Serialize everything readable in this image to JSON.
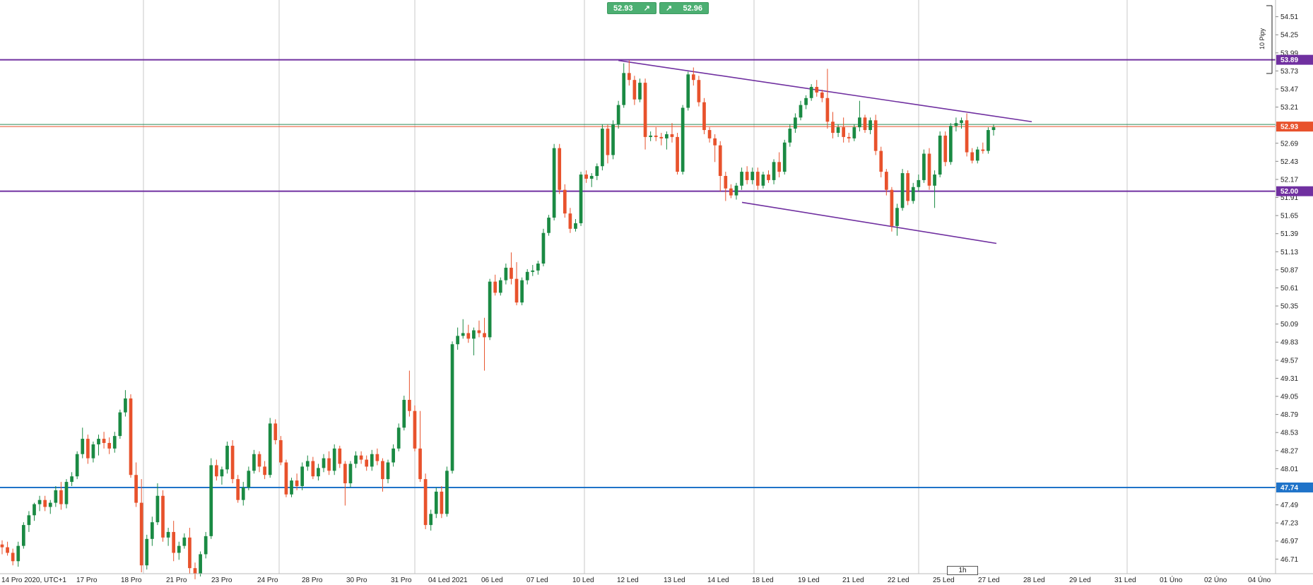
{
  "header": {
    "sell_value": "52.93",
    "buy_value": "52.96",
    "sell_icon": "arrow-up-right-icon",
    "buy_icon": "arrow-up-right-icon"
  },
  "timeframe": "1h",
  "measure_label": "10 Pipy",
  "chart_data": {
    "type": "candlestick",
    "y_ticks": [
      "54.51",
      "54.25",
      "53.99",
      "53.73",
      "53.47",
      "53.21",
      "52.95",
      "52.69",
      "52.43",
      "52.17",
      "51.91",
      "51.65",
      "51.39",
      "51.13",
      "50.87",
      "50.61",
      "50.35",
      "50.09",
      "49.83",
      "49.57",
      "49.31",
      "49.05",
      "48.79",
      "48.53",
      "48.27",
      "48.01",
      "47.75",
      "47.49",
      "47.23",
      "46.97",
      "46.71"
    ],
    "ylim": [
      46.5,
      54.75
    ],
    "x_labels": [
      "14 Pro 2020, UTC+1",
      "17 Pro",
      "18 Pro",
      "21 Pro",
      "23 Pro",
      "24 Pro",
      "28 Pro",
      "30 Pro",
      "31 Pro",
      "04 Led 2021",
      "06 Led",
      "07 Led",
      "10 Led",
      "12 Led",
      "13 Led",
      "14 Led",
      "18 Led",
      "19 Led",
      "21 Led",
      "22 Led",
      "25 Led",
      "27 Led",
      "28 Led",
      "29 Led",
      "31 Led",
      "01 Úno",
      "02 Úno",
      "04 Úno"
    ],
    "horizontal_lines": [
      {
        "value": 53.89,
        "label": "53.89",
        "color": "#7030a0"
      },
      {
        "value": 52.0,
        "label": "52.00",
        "color": "#7030a0"
      },
      {
        "value": 47.74,
        "label": "47.74",
        "color": "#1f73c9"
      },
      {
        "value": 52.96,
        "label": "",
        "color": "#2e8b57"
      },
      {
        "value": 52.93,
        "label": "52.93",
        "color": "#e8522c"
      }
    ],
    "channel": {
      "upper": {
        "start_value": 53.88,
        "end_value": 53.0
      },
      "lower": {
        "start_value": 51.84,
        "end_value": 51.25
      }
    },
    "candles": [
      [
        46.92,
        46.98,
        46.78,
        46.88
      ],
      [
        46.88,
        46.96,
        46.76,
        46.8
      ],
      [
        46.8,
        46.86,
        46.62,
        46.68
      ],
      [
        46.68,
        46.96,
        46.6,
        46.9
      ],
      [
        46.9,
        47.24,
        46.86,
        47.2
      ],
      [
        47.2,
        47.4,
        47.1,
        47.34
      ],
      [
        47.34,
        47.52,
        47.26,
        47.5
      ],
      [
        47.5,
        47.62,
        47.4,
        47.56
      ],
      [
        47.56,
        47.62,
        47.4,
        47.46
      ],
      [
        47.46,
        47.56,
        47.36,
        47.52
      ],
      [
        47.52,
        47.76,
        47.46,
        47.7
      ],
      [
        47.7,
        47.82,
        47.42,
        47.5
      ],
      [
        47.5,
        47.86,
        47.44,
        47.82
      ],
      [
        47.82,
        47.96,
        47.76,
        47.9
      ],
      [
        47.9,
        48.26,
        47.86,
        48.22
      ],
      [
        48.22,
        48.6,
        48.16,
        48.44
      ],
      [
        48.44,
        48.5,
        48.08,
        48.16
      ],
      [
        48.16,
        48.4,
        48.1,
        48.36
      ],
      [
        48.36,
        48.5,
        48.2,
        48.44
      ],
      [
        48.44,
        48.54,
        48.3,
        48.38
      ],
      [
        48.38,
        48.46,
        48.22,
        48.3
      ],
      [
        48.3,
        48.54,
        48.24,
        48.48
      ],
      [
        48.48,
        48.86,
        48.44,
        48.82
      ],
      [
        48.82,
        49.14,
        48.76,
        49.02
      ],
      [
        49.02,
        49.08,
        47.88,
        47.92
      ],
      [
        47.92,
        48.1,
        47.46,
        47.52
      ],
      [
        47.52,
        47.86,
        46.52,
        46.62
      ],
      [
        46.62,
        47.06,
        46.56,
        47.0
      ],
      [
        47.0,
        47.32,
        46.9,
        47.24
      ],
      [
        47.24,
        47.8,
        47.2,
        47.62
      ],
      [
        47.62,
        47.7,
        46.96,
        47.02
      ],
      [
        47.02,
        47.16,
        46.9,
        47.1
      ],
      [
        47.1,
        47.26,
        46.68,
        46.8
      ],
      [
        46.8,
        46.96,
        46.7,
        46.9
      ],
      [
        46.9,
        47.08,
        46.86,
        47.02
      ],
      [
        47.02,
        47.16,
        46.5,
        46.58
      ],
      [
        46.58,
        46.66,
        46.42,
        46.5
      ],
      [
        46.5,
        46.82,
        46.46,
        46.78
      ],
      [
        46.78,
        47.1,
        46.72,
        47.04
      ],
      [
        47.04,
        48.16,
        47.0,
        48.06
      ],
      [
        48.06,
        48.14,
        47.84,
        47.9
      ],
      [
        47.9,
        48.04,
        47.78,
        48.0
      ],
      [
        48.0,
        48.4,
        47.94,
        48.34
      ],
      [
        48.34,
        48.42,
        47.8,
        47.86
      ],
      [
        47.86,
        47.92,
        47.52,
        47.56
      ],
      [
        47.56,
        47.82,
        47.48,
        47.74
      ],
      [
        47.74,
        48.04,
        47.7,
        47.98
      ],
      [
        47.98,
        48.28,
        47.94,
        48.22
      ],
      [
        48.22,
        48.26,
        47.96,
        48.04
      ],
      [
        48.04,
        48.12,
        47.86,
        47.92
      ],
      [
        47.92,
        48.74,
        47.88,
        48.66
      ],
      [
        48.66,
        48.72,
        48.36,
        48.42
      ],
      [
        48.42,
        48.48,
        48.06,
        48.1
      ],
      [
        48.1,
        48.14,
        47.6,
        47.64
      ],
      [
        47.64,
        47.88,
        47.6,
        47.84
      ],
      [
        47.84,
        47.94,
        47.7,
        47.76
      ],
      [
        47.76,
        48.1,
        47.7,
        48.04
      ],
      [
        48.04,
        48.2,
        47.98,
        48.12
      ],
      [
        48.12,
        48.18,
        47.86,
        47.9
      ],
      [
        47.9,
        48.08,
        47.84,
        48.02
      ],
      [
        48.02,
        48.22,
        47.96,
        48.16
      ],
      [
        48.16,
        48.26,
        47.92,
        47.98
      ],
      [
        47.98,
        48.36,
        47.92,
        48.3
      ],
      [
        48.3,
        48.34,
        48.02,
        48.08
      ],
      [
        48.08,
        48.12,
        47.48,
        47.8
      ],
      [
        47.8,
        48.12,
        47.74,
        48.08
      ],
      [
        48.08,
        48.26,
        48.02,
        48.2
      ],
      [
        48.2,
        48.26,
        48.08,
        48.14
      ],
      [
        48.14,
        48.2,
        47.98,
        48.04
      ],
      [
        48.04,
        48.28,
        47.98,
        48.22
      ],
      [
        48.22,
        48.3,
        48.06,
        48.12
      ],
      [
        48.12,
        48.16,
        47.68,
        47.86
      ],
      [
        47.86,
        48.14,
        47.8,
        48.1
      ],
      [
        48.1,
        48.36,
        48.04,
        48.3
      ],
      [
        48.3,
        48.66,
        48.26,
        48.6
      ],
      [
        48.6,
        49.06,
        48.56,
        49.0
      ],
      [
        49.0,
        49.42,
        48.76,
        48.84
      ],
      [
        48.84,
        48.92,
        48.26,
        48.3
      ],
      [
        48.3,
        48.84,
        47.82,
        47.86
      ],
      [
        47.86,
        47.94,
        47.14,
        47.2
      ],
      [
        47.2,
        47.42,
        47.12,
        47.36
      ],
      [
        47.36,
        47.74,
        47.3,
        47.68
      ],
      [
        47.68,
        47.76,
        47.3,
        47.36
      ],
      [
        47.36,
        48.04,
        47.32,
        47.98
      ],
      [
        47.98,
        49.84,
        47.94,
        49.8
      ],
      [
        49.8,
        50.04,
        49.72,
        49.92
      ],
      [
        49.92,
        50.16,
        49.88,
        49.96
      ],
      [
        49.96,
        50.08,
        49.82,
        49.88
      ],
      [
        49.88,
        50.04,
        49.64,
        50.0
      ],
      [
        50.0,
        50.14,
        49.9,
        49.96
      ],
      [
        49.96,
        50.18,
        49.42,
        49.9
      ],
      [
        49.9,
        50.74,
        49.86,
        50.7
      ],
      [
        50.7,
        50.8,
        50.5,
        50.54
      ],
      [
        50.54,
        50.76,
        50.5,
        50.72
      ],
      [
        50.72,
        50.96,
        50.66,
        50.9
      ],
      [
        50.9,
        51.12,
        50.66,
        50.74
      ],
      [
        50.74,
        50.98,
        50.36,
        50.4
      ],
      [
        50.4,
        50.76,
        50.36,
        50.72
      ],
      [
        50.72,
        50.88,
        50.66,
        50.84
      ],
      [
        50.84,
        50.94,
        50.78,
        50.86
      ],
      [
        50.86,
        51.0,
        50.8,
        50.96
      ],
      [
        50.96,
        51.46,
        50.92,
        51.4
      ],
      [
        51.4,
        51.66,
        51.36,
        51.62
      ],
      [
        51.62,
        52.68,
        51.58,
        52.62
      ],
      [
        52.62,
        52.68,
        51.96,
        52.02
      ],
      [
        52.02,
        52.1,
        51.62,
        51.68
      ],
      [
        51.68,
        51.76,
        51.4,
        51.46
      ],
      [
        51.46,
        51.6,
        51.42,
        51.54
      ],
      [
        51.54,
        52.28,
        51.5,
        52.24
      ],
      [
        52.24,
        52.3,
        52.12,
        52.18
      ],
      [
        52.18,
        52.26,
        52.06,
        52.22
      ],
      [
        52.22,
        52.4,
        52.16,
        52.36
      ],
      [
        52.36,
        52.96,
        52.3,
        52.9
      ],
      [
        52.9,
        52.96,
        52.4,
        52.52
      ],
      [
        52.52,
        53.02,
        52.46,
        52.96
      ],
      [
        52.96,
        53.3,
        52.9,
        53.24
      ],
      [
        53.24,
        53.84,
        53.2,
        53.7
      ],
      [
        53.7,
        53.88,
        53.52,
        53.6
      ],
      [
        53.6,
        53.66,
        53.24,
        53.32
      ],
      [
        53.32,
        53.62,
        53.28,
        53.56
      ],
      [
        53.56,
        53.62,
        52.6,
        52.78
      ],
      [
        52.78,
        52.86,
        52.72,
        52.8
      ],
      [
        52.8,
        52.92,
        52.72,
        52.78
      ],
      [
        52.78,
        52.84,
        52.66,
        52.76
      ],
      [
        52.76,
        52.86,
        52.6,
        52.82
      ],
      [
        52.82,
        52.98,
        52.7,
        52.78
      ],
      [
        52.78,
        52.84,
        52.24,
        52.28
      ],
      [
        52.28,
        53.24,
        52.24,
        53.2
      ],
      [
        53.2,
        53.72,
        53.16,
        53.68
      ],
      [
        53.68,
        53.78,
        53.52,
        53.6
      ],
      [
        53.6,
        53.66,
        53.22,
        53.28
      ],
      [
        53.28,
        53.34,
        52.82,
        52.88
      ],
      [
        52.88,
        52.92,
        52.7,
        52.76
      ],
      [
        52.76,
        52.82,
        52.42,
        52.66
      ],
      [
        52.66,
        52.72,
        52.0,
        52.22
      ],
      [
        52.22,
        52.28,
        51.86,
        52.04
      ],
      [
        52.04,
        52.1,
        51.9,
        51.94
      ],
      [
        51.94,
        52.12,
        51.88,
        52.08
      ],
      [
        52.08,
        52.34,
        52.02,
        52.28
      ],
      [
        52.28,
        52.36,
        52.1,
        52.16
      ],
      [
        52.16,
        52.34,
        52.1,
        52.28
      ],
      [
        52.28,
        52.34,
        52.02,
        52.08
      ],
      [
        52.08,
        52.28,
        52.04,
        52.24
      ],
      [
        52.24,
        52.3,
        52.12,
        52.16
      ],
      [
        52.16,
        52.46,
        52.1,
        52.42
      ],
      [
        52.42,
        52.56,
        52.2,
        52.28
      ],
      [
        52.28,
        52.74,
        52.24,
        52.7
      ],
      [
        52.7,
        52.96,
        52.64,
        52.9
      ],
      [
        52.9,
        53.12,
        52.84,
        53.06
      ],
      [
        53.06,
        53.3,
        53.02,
        53.24
      ],
      [
        53.24,
        53.38,
        53.18,
        53.34
      ],
      [
        53.34,
        53.54,
        53.3,
        53.5
      ],
      [
        53.5,
        53.6,
        53.36,
        53.42
      ],
      [
        53.42,
        53.46,
        53.28,
        53.34
      ],
      [
        53.34,
        53.76,
        52.9,
        53.0
      ],
      [
        53.0,
        53.14,
        52.76,
        52.84
      ],
      [
        52.84,
        52.96,
        52.78,
        52.92
      ],
      [
        52.92,
        53.06,
        52.7,
        52.78
      ],
      [
        52.78,
        52.84,
        52.7,
        52.76
      ],
      [
        52.76,
        52.96,
        52.72,
        52.92
      ],
      [
        52.92,
        53.3,
        52.86,
        53.06
      ],
      [
        53.06,
        53.1,
        52.84,
        52.88
      ],
      [
        52.88,
        53.06,
        52.82,
        53.02
      ],
      [
        53.02,
        53.1,
        52.52,
        52.58
      ],
      [
        52.58,
        52.64,
        52.2,
        52.28
      ],
      [
        52.28,
        52.32,
        51.94,
        52.02
      ],
      [
        52.02,
        52.06,
        51.42,
        51.5
      ],
      [
        51.5,
        51.82,
        51.36,
        51.76
      ],
      [
        51.76,
        52.32,
        51.72,
        52.26
      ],
      [
        52.26,
        52.3,
        51.8,
        51.86
      ],
      [
        51.86,
        52.12,
        51.82,
        52.06
      ],
      [
        52.06,
        52.24,
        52.0,
        52.16
      ],
      [
        52.16,
        52.6,
        52.12,
        52.54
      ],
      [
        52.54,
        52.62,
        52.02,
        52.08
      ],
      [
        52.08,
        52.3,
        51.76,
        52.24
      ],
      [
        52.24,
        52.86,
        52.2,
        52.8
      ],
      [
        52.8,
        52.86,
        52.36,
        52.42
      ],
      [
        52.42,
        52.98,
        52.38,
        52.94
      ],
      [
        52.94,
        53.06,
        52.86,
        52.98
      ],
      [
        52.98,
        53.06,
        52.9,
        53.02
      ],
      [
        53.02,
        53.12,
        52.5,
        52.56
      ],
      [
        52.56,
        52.62,
        52.4,
        52.44
      ],
      [
        52.44,
        52.64,
        52.4,
        52.6
      ],
      [
        52.6,
        52.7,
        52.54,
        52.58
      ],
      [
        52.58,
        52.92,
        52.54,
        52.88
      ],
      [
        52.88,
        52.96,
        52.8,
        52.92
      ]
    ]
  }
}
